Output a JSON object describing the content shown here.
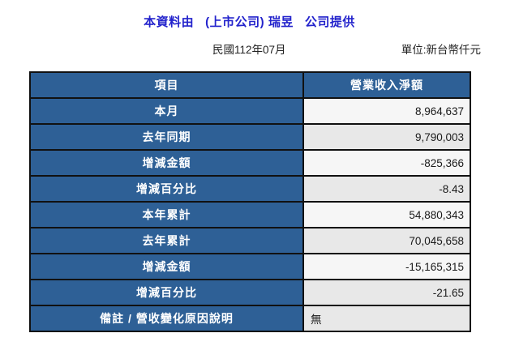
{
  "header": {
    "title": "本資料由   (上市公司) 瑞昱   公司提供",
    "period": "民國112年07月",
    "unit": "單位:新台幣仟元"
  },
  "table": {
    "columns": [
      "項目",
      "營業收入淨額"
    ],
    "rows": [
      {
        "label": "本月",
        "value": "8,964,637"
      },
      {
        "label": "去年同期",
        "value": "9,790,003"
      },
      {
        "label": "增減金額",
        "value": "-825,366"
      },
      {
        "label": "增減百分比",
        "value": "-8.43"
      },
      {
        "label": "本年累計",
        "value": "54,880,343"
      },
      {
        "label": "去年累計",
        "value": "70,045,658"
      },
      {
        "label": "增減金額",
        "value": "-15,165,315"
      },
      {
        "label": "增減百分比",
        "value": "-21.65"
      },
      {
        "label": "備註 / 營收變化原因說明",
        "value": "無",
        "align": "left"
      }
    ]
  },
  "colors": {
    "accent": "#2e6096",
    "title_color": "#2323cc",
    "row_light": "#f6f6f6",
    "row_alt": "#e8e8e8",
    "border_color": "#111111",
    "text_dark": "#1a1a1a"
  }
}
